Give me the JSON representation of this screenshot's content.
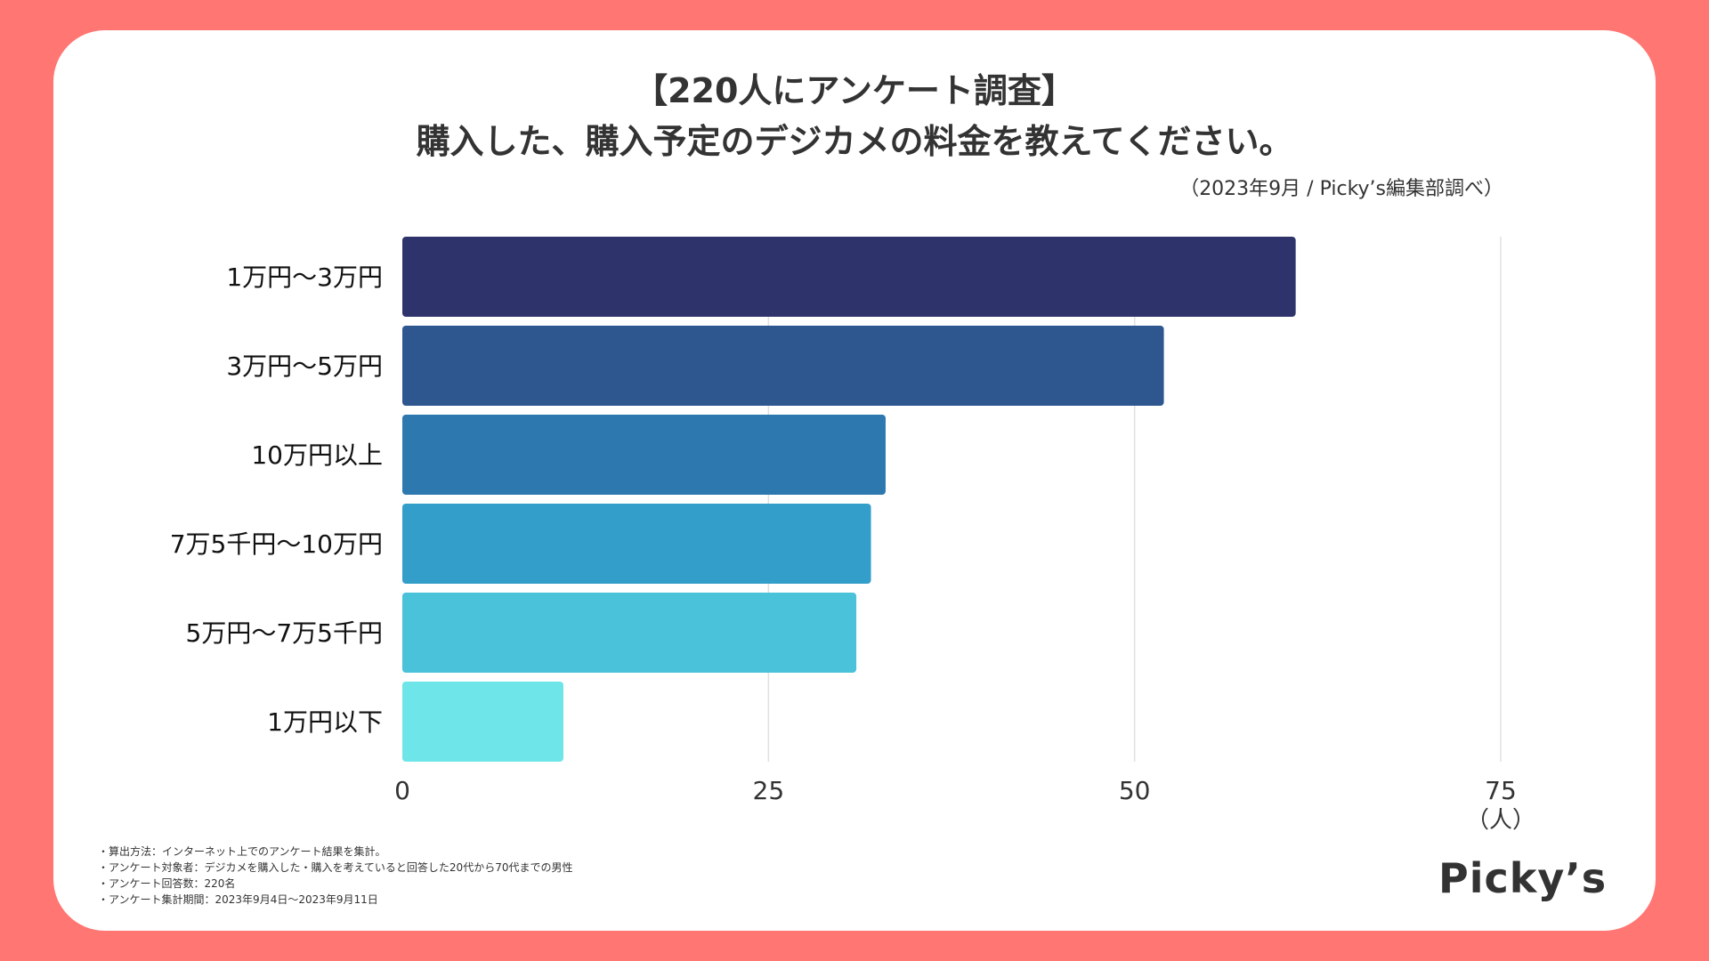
{
  "header": {
    "title_line1": "【220人にアンケート調査】",
    "title_line2": "購入した、購入予定のデジカメの料金を教えてください。",
    "source": "（2023年9月 / Picky’s編集部調べ）"
  },
  "chart_data": {
    "type": "bar",
    "orientation": "horizontal",
    "categories": [
      "1万円〜3万円",
      "3万円〜5万円",
      "10万円以上",
      "7万5千円〜10万円",
      "5万円〜7万5千円",
      "1万円以下"
    ],
    "values": [
      61,
      52,
      33,
      32,
      31,
      11
    ],
    "colors": [
      "#2E346B",
      "#2F578F",
      "#2D79AF",
      "#329EC9",
      "#4AC2D9",
      "#6EE5E8"
    ],
    "xlim": [
      0,
      75
    ],
    "xticks": [
      0,
      25,
      50,
      75
    ],
    "xticklabels": [
      "0",
      "25",
      "50",
      "75"
    ],
    "xunit": "（人）",
    "grid": true
  },
  "footnotes": [
    "・算出方法：インターネット上でのアンケート結果を集計。",
    "・アンケート対象者：デジカメを購入した・購入を考えていると回答した20代から70代までの男性",
    "・アンケート回答数：220名",
    "・アンケート集計期間：2023年9月4日〜2023年9月11日"
  ],
  "brand": {
    "logo_text": "Picky’s"
  },
  "colors": {
    "background": "#FF7672",
    "card": "#FFFFFF",
    "text": "#333333",
    "grid": "#E0E0E0"
  }
}
